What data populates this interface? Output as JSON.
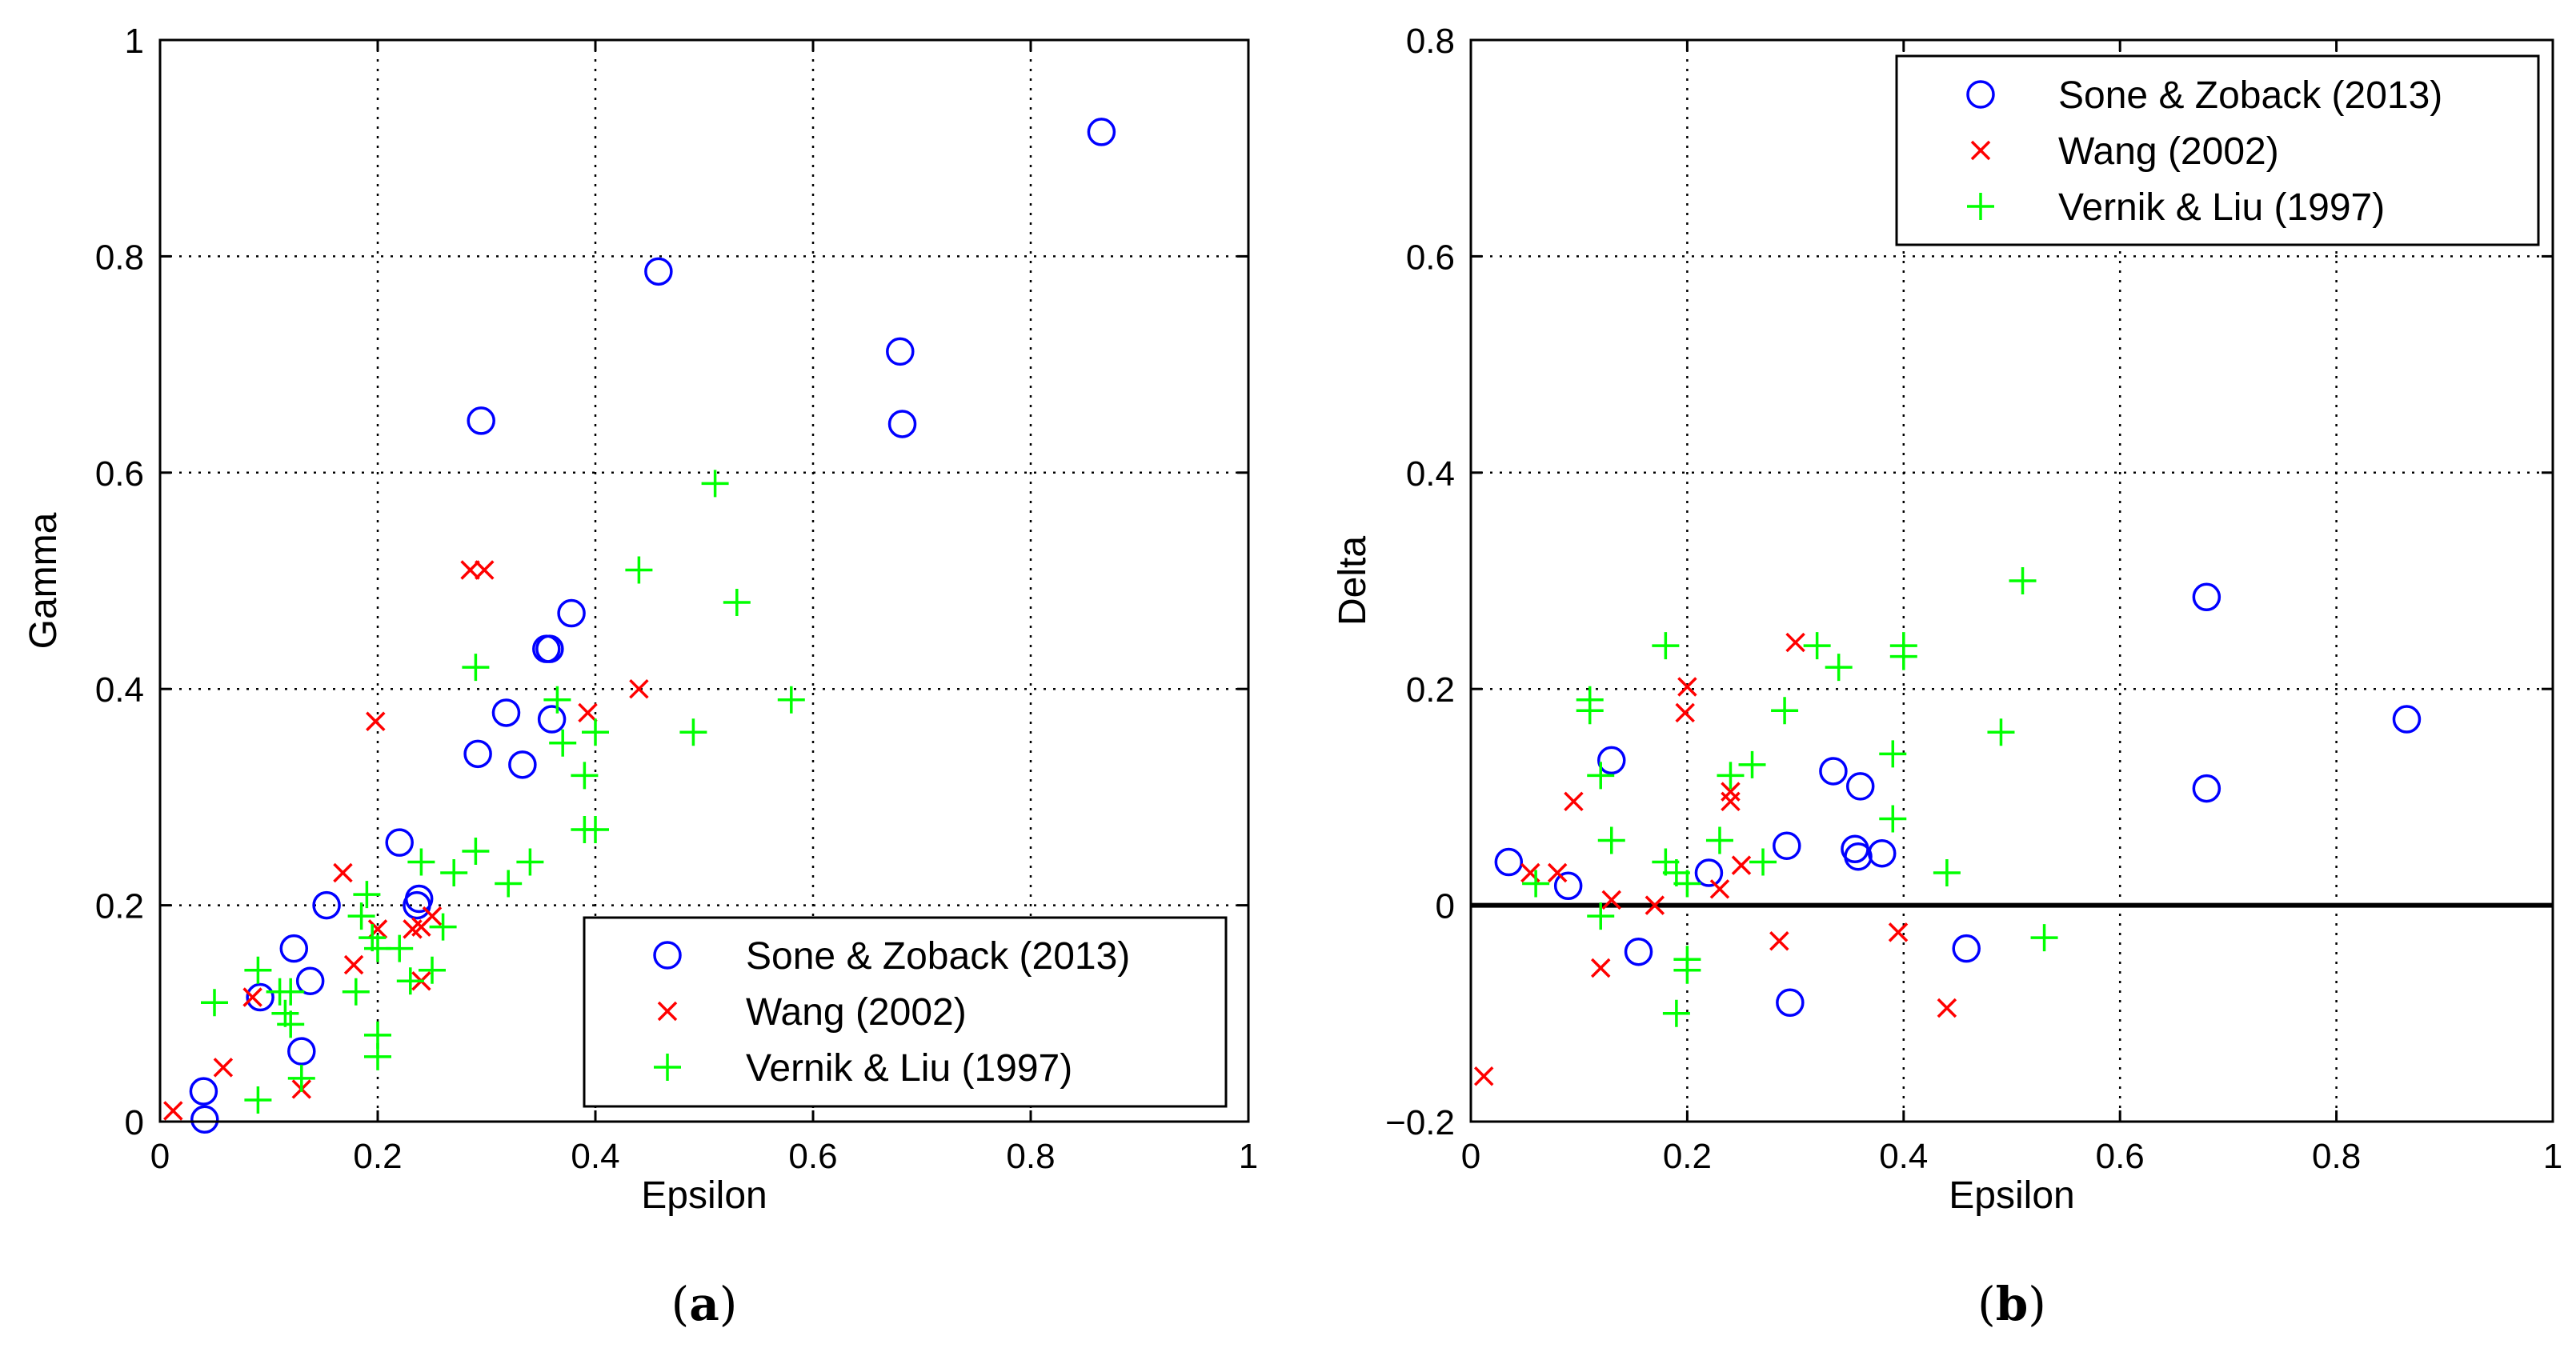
{
  "chart_data": [
    {
      "type": "scatter",
      "panel_label": "a",
      "xlabel": "Epsilon",
      "ylabel": "Gamma",
      "xlim": [
        0,
        1
      ],
      "ylim": [
        0,
        1
      ],
      "xticks": [
        0,
        0.2,
        0.4,
        0.6,
        0.8,
        1
      ],
      "xtick_labels": [
        "0",
        "0.2",
        "0.4",
        "0.6",
        "0.8",
        "1"
      ],
      "yticks": [
        0,
        0.2,
        0.4,
        0.6,
        0.8,
        1
      ],
      "ytick_labels": [
        "0",
        "0.2",
        "0.4",
        "0.6",
        "0.8",
        "1"
      ],
      "grid": true,
      "legend_position": "bottom-right",
      "series": [
        {
          "name": "Sone & Zoback (2013)",
          "marker": "circle",
          "color": "#0000ff",
          "points": [
            [
              0.865,
              0.915
            ],
            [
              0.458,
              0.786
            ],
            [
              0.68,
              0.712
            ],
            [
              0.682,
              0.645
            ],
            [
              0.295,
              0.648
            ],
            [
              0.378,
              0.47
            ],
            [
              0.355,
              0.437
            ],
            [
              0.358,
              0.437
            ],
            [
              0.318,
              0.378
            ],
            [
              0.36,
              0.372
            ],
            [
              0.292,
              0.34
            ],
            [
              0.333,
              0.33
            ],
            [
              0.22,
              0.258
            ],
            [
              0.238,
              0.206
            ],
            [
              0.236,
              0.2
            ],
            [
              0.153,
              0.2
            ],
            [
              0.123,
              0.16
            ],
            [
              0.138,
              0.13
            ],
            [
              0.092,
              0.115
            ],
            [
              0.13,
              0.065
            ],
            [
              0.04,
              0.028
            ],
            [
              0.041,
              0.002
            ]
          ]
        },
        {
          "name": "Wang (2002)",
          "marker": "x",
          "color": "#ff0000",
          "points": [
            [
              0.285,
              0.51
            ],
            [
              0.298,
              0.51
            ],
            [
              0.44,
              0.4
            ],
            [
              0.393,
              0.378
            ],
            [
              0.198,
              0.37
            ],
            [
              0.168,
              0.23
            ],
            [
              0.2,
              0.178
            ],
            [
              0.232,
              0.178
            ],
            [
              0.24,
              0.18
            ],
            [
              0.25,
              0.19
            ],
            [
              0.178,
              0.145
            ],
            [
              0.24,
              0.13
            ],
            [
              0.085,
              0.115
            ],
            [
              0.058,
              0.05
            ],
            [
              0.13,
              0.03
            ],
            [
              0.012,
              0.01
            ]
          ]
        },
        {
          "name": "Vernik & Liu (1997)",
          "marker": "plus",
          "color": "#00ff00",
          "points": [
            [
              0.51,
              0.59
            ],
            [
              0.44,
              0.51
            ],
            [
              0.53,
              0.48
            ],
            [
              0.29,
              0.42
            ],
            [
              0.365,
              0.39
            ],
            [
              0.58,
              0.39
            ],
            [
              0.4,
              0.36
            ],
            [
              0.49,
              0.36
            ],
            [
              0.37,
              0.35
            ],
            [
              0.39,
              0.32
            ],
            [
              0.39,
              0.27
            ],
            [
              0.4,
              0.27
            ],
            [
              0.29,
              0.25
            ],
            [
              0.24,
              0.24
            ],
            [
              0.34,
              0.24
            ],
            [
              0.27,
              0.23
            ],
            [
              0.32,
              0.22
            ],
            [
              0.19,
              0.21
            ],
            [
              0.185,
              0.19
            ],
            [
              0.195,
              0.17
            ],
            [
              0.2,
              0.16
            ],
            [
              0.22,
              0.16
            ],
            [
              0.26,
              0.18
            ],
            [
              0.25,
              0.14
            ],
            [
              0.23,
              0.13
            ],
            [
              0.09,
              0.14
            ],
            [
              0.12,
              0.12
            ],
            [
              0.11,
              0.12
            ],
            [
              0.18,
              0.12
            ],
            [
              0.05,
              0.11
            ],
            [
              0.115,
              0.1
            ],
            [
              0.12,
              0.09
            ],
            [
              0.2,
              0.08
            ],
            [
              0.2,
              0.06
            ],
            [
              0.13,
              0.04
            ],
            [
              0.09,
              0.02
            ]
          ]
        }
      ]
    },
    {
      "type": "scatter",
      "panel_label": "b",
      "xlabel": "Epsilon",
      "ylabel": "Delta",
      "xlim": [
        0,
        1
      ],
      "ylim": [
        -0.2,
        0.8
      ],
      "xticks": [
        0,
        0.2,
        0.4,
        0.6,
        0.8,
        1
      ],
      "xtick_labels": [
        "0",
        "0.2",
        "0.4",
        "0.6",
        "0.8",
        "1"
      ],
      "yticks": [
        -0.2,
        0,
        0.2,
        0.4,
        0.6,
        0.8
      ],
      "ytick_labels": [
        "−0.2",
        "0",
        "0.2",
        "0.4",
        "0.6",
        "0.8"
      ],
      "grid": true,
      "zero_line": true,
      "legend_position": "top-right",
      "series": [
        {
          "name": "Sone & Zoback (2013)",
          "marker": "circle",
          "color": "#0000ff",
          "points": [
            [
              0.68,
              0.285
            ],
            [
              0.865,
              0.172
            ],
            [
              0.68,
              0.108
            ],
            [
              0.13,
              0.134
            ],
            [
              0.335,
              0.124
            ],
            [
              0.36,
              0.11
            ],
            [
              0.035,
              0.04
            ],
            [
              0.09,
              0.018
            ],
            [
              0.22,
              0.03
            ],
            [
              0.292,
              0.055
            ],
            [
              0.355,
              0.052
            ],
            [
              0.358,
              0.045
            ],
            [
              0.38,
              0.048
            ],
            [
              0.155,
              -0.043
            ],
            [
              0.458,
              -0.04
            ],
            [
              0.295,
              -0.09
            ]
          ]
        },
        {
          "name": "Wang (2002)",
          "marker": "x",
          "color": "#ff0000",
          "points": [
            [
              0.3,
              0.243
            ],
            [
              0.2,
              0.202
            ],
            [
              0.198,
              0.178
            ],
            [
              0.24,
              0.105
            ],
            [
              0.24,
              0.096
            ],
            [
              0.095,
              0.096
            ],
            [
              0.08,
              0.03
            ],
            [
              0.055,
              0.03
            ],
            [
              0.13,
              0.005
            ],
            [
              0.17,
              0.0
            ],
            [
              0.23,
              0.015
            ],
            [
              0.25,
              0.037
            ],
            [
              0.285,
              -0.033
            ],
            [
              0.395,
              -0.025
            ],
            [
              0.12,
              -0.058
            ],
            [
              0.44,
              -0.095
            ],
            [
              0.012,
              -0.158
            ]
          ]
        },
        {
          "name": "Vernik & Liu (1997)",
          "marker": "plus",
          "color": "#00ff00",
          "points": [
            [
              0.51,
              0.3
            ],
            [
              0.18,
              0.24
            ],
            [
              0.32,
              0.24
            ],
            [
              0.34,
              0.22
            ],
            [
              0.4,
              0.24
            ],
            [
              0.4,
              0.23
            ],
            [
              0.11,
              0.19
            ],
            [
              0.11,
              0.18
            ],
            [
              0.29,
              0.18
            ],
            [
              0.49,
              0.16
            ],
            [
              0.39,
              0.14
            ],
            [
              0.26,
              0.13
            ],
            [
              0.24,
              0.12
            ],
            [
              0.12,
              0.12
            ],
            [
              0.39,
              0.08
            ],
            [
              0.13,
              0.06
            ],
            [
              0.23,
              0.06
            ],
            [
              0.18,
              0.04
            ],
            [
              0.27,
              0.04
            ],
            [
              0.44,
              0.03
            ],
            [
              0.19,
              0.03
            ],
            [
              0.06,
              0.02
            ],
            [
              0.2,
              0.02
            ],
            [
              0.12,
              -0.01
            ],
            [
              0.53,
              -0.03
            ],
            [
              0.2,
              -0.05
            ],
            [
              0.2,
              -0.06
            ],
            [
              0.19,
              -0.1
            ]
          ]
        }
      ]
    }
  ]
}
